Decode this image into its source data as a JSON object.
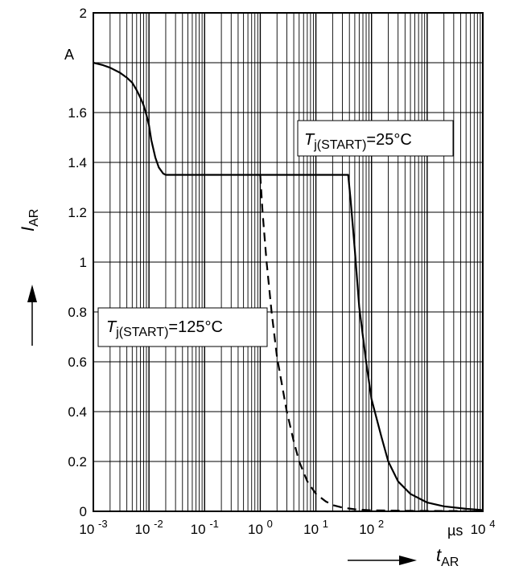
{
  "chart_data": {
    "type": "line",
    "x_scale": "log",
    "xlim": [
      0.001,
      10000
    ],
    "ylim": [
      0,
      2
    ],
    "grid": true,
    "xlabel": {
      "symbol": "t",
      "subscript": "AR"
    },
    "ylabel": {
      "symbol": "I",
      "subscript": "AR"
    },
    "x_unit": "µs",
    "y_unit": "A",
    "x_ticks": [
      {
        "base": "10",
        "exp": "-3"
      },
      {
        "base": "10",
        "exp": "-2"
      },
      {
        "base": "10",
        "exp": "-1"
      },
      {
        "base": "10",
        "exp": "0"
      },
      {
        "base": "10",
        "exp": "1"
      },
      {
        "base": "10",
        "exp": "2"
      },
      {
        "base": "10",
        "exp": "4"
      }
    ],
    "y_ticks": [
      "0",
      "0.2",
      "0.4",
      "0.6",
      "0.8",
      "1",
      "1.2",
      "1.4",
      "1.6",
      "2"
    ],
    "series": [
      {
        "line_style": "solid",
        "x": [
          0.001,
          0.0015,
          0.002,
          0.003,
          0.004,
          0.005,
          0.006,
          0.007,
          0.008,
          0.009,
          0.01,
          0.011,
          0.013,
          0.015,
          0.018,
          0.02,
          1,
          10,
          30,
          38,
          42,
          50,
          60,
          80,
          100,
          150,
          200,
          300,
          500,
          1000,
          2000,
          5000,
          10000
        ],
        "y": [
          1.8,
          1.79,
          1.78,
          1.76,
          1.74,
          1.72,
          1.69,
          1.66,
          1.63,
          1.59,
          1.55,
          1.49,
          1.42,
          1.38,
          1.355,
          1.35,
          1.35,
          1.35,
          1.35,
          1.35,
          1.25,
          1.05,
          0.82,
          0.6,
          0.45,
          0.3,
          0.2,
          0.12,
          0.07,
          0.035,
          0.02,
          0.01,
          0.005
        ]
      },
      {
        "line_style": "dashed",
        "x": [
          1,
          1.1,
          1.3,
          1.6,
          2,
          3,
          4,
          5,
          7,
          10,
          15,
          20,
          30,
          50,
          100,
          500,
          5000
        ],
        "y": [
          1.35,
          1.2,
          1.0,
          0.8,
          0.62,
          0.4,
          0.28,
          0.2,
          0.12,
          0.07,
          0.04,
          0.025,
          0.015,
          0.008,
          0.004,
          0.002,
          0.001
        ]
      }
    ],
    "annotations": [
      {
        "symbol": "T",
        "subscript": "j(START)",
        "suffix": "=25°C"
      },
      {
        "symbol": "T",
        "subscript": "j(START)",
        "suffix": "=125°C"
      }
    ]
  }
}
